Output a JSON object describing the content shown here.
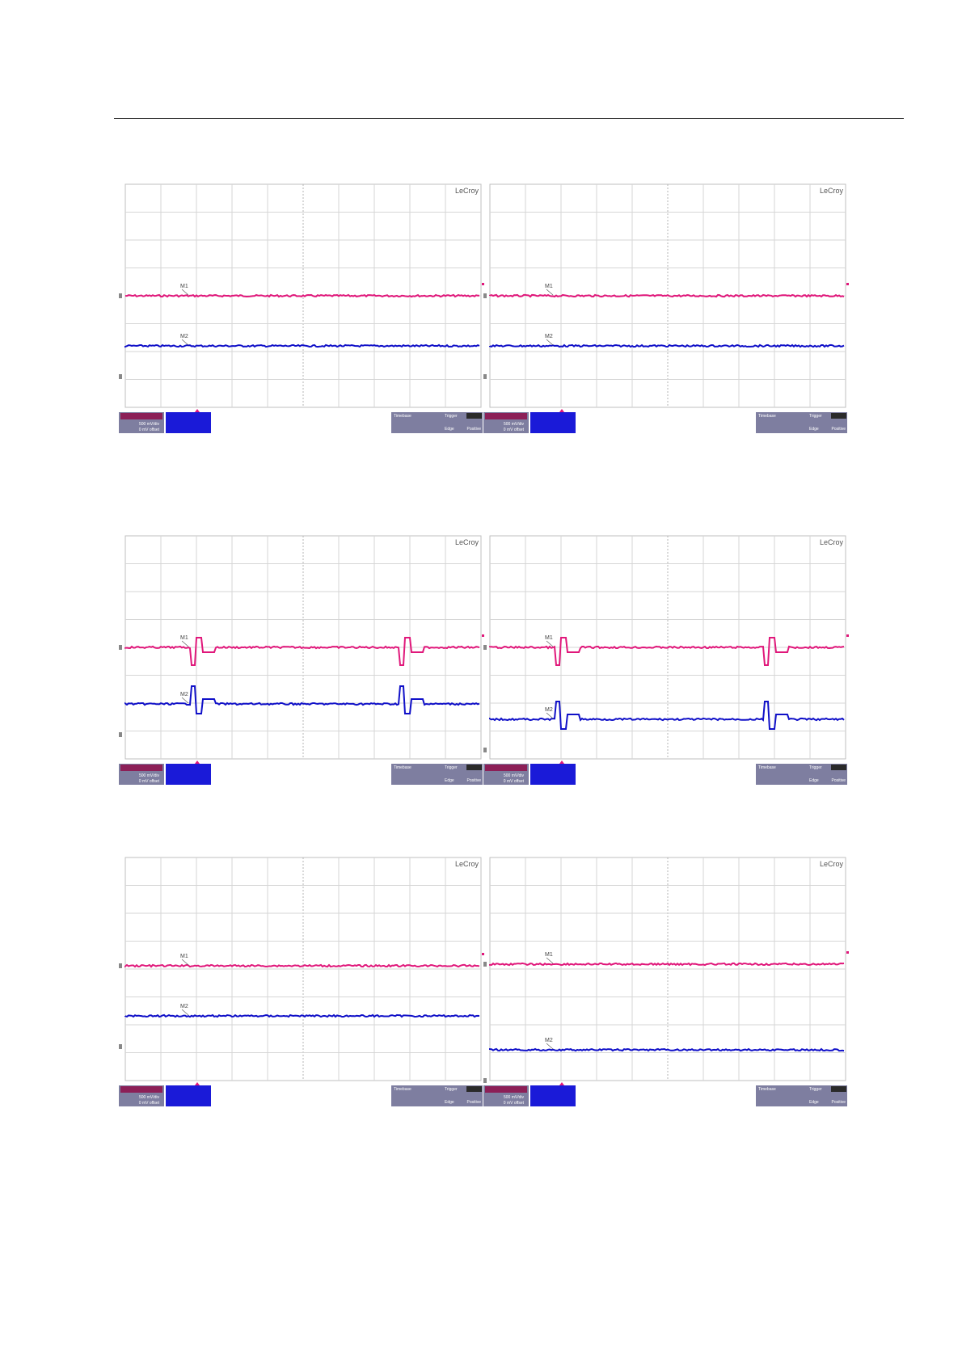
{
  "page": {
    "header_rule": true
  },
  "colors": {
    "ch1": "#e0177a",
    "ch2": "#1010c8",
    "grid": "#d6d6d6",
    "panel": "#7e7ea0",
    "ch1_box": "#8c1f57",
    "ch2_box": "#1a1ad8",
    "trig_tag": "#2a2a2a"
  },
  "scopes": [
    {
      "brand": "LeCroy",
      "trace1": "flat",
      "trace2": "flat",
      "tag1": "M1",
      "tag2": "M2",
      "variant": "A"
    },
    {
      "brand": "LeCroy",
      "trace1": "flat",
      "trace2": "flat",
      "tag1": "M1",
      "tag2": "M2",
      "variant": "A"
    },
    {
      "brand": "LeCroy",
      "trace1": "pulse",
      "trace2": "pulse",
      "tag1": "M1",
      "tag2": "M2",
      "variant": "B"
    },
    {
      "brand": "LeCroy",
      "trace1": "pulse",
      "trace2": "pulse",
      "tag1": "M1",
      "tag2": "M2",
      "variant": "C"
    },
    {
      "brand": "LeCroy",
      "trace1": "flat",
      "trace2": "flat",
      "tag1": "M1",
      "tag2": "M2",
      "variant": "D"
    },
    {
      "brand": "LeCroy",
      "trace1": "flat",
      "trace2": "flat",
      "tag1": "M1",
      "tag2": "M2",
      "variant": "E"
    }
  ],
  "info_panel": {
    "timebase_label": "Timebase",
    "trigger_label": "Trigger",
    "trigger_mode_label": "Edge",
    "trigger_slope": "Positive",
    "ch1_scale": "500 mV/div",
    "ch1_offset": "0 mV offset"
  }
}
